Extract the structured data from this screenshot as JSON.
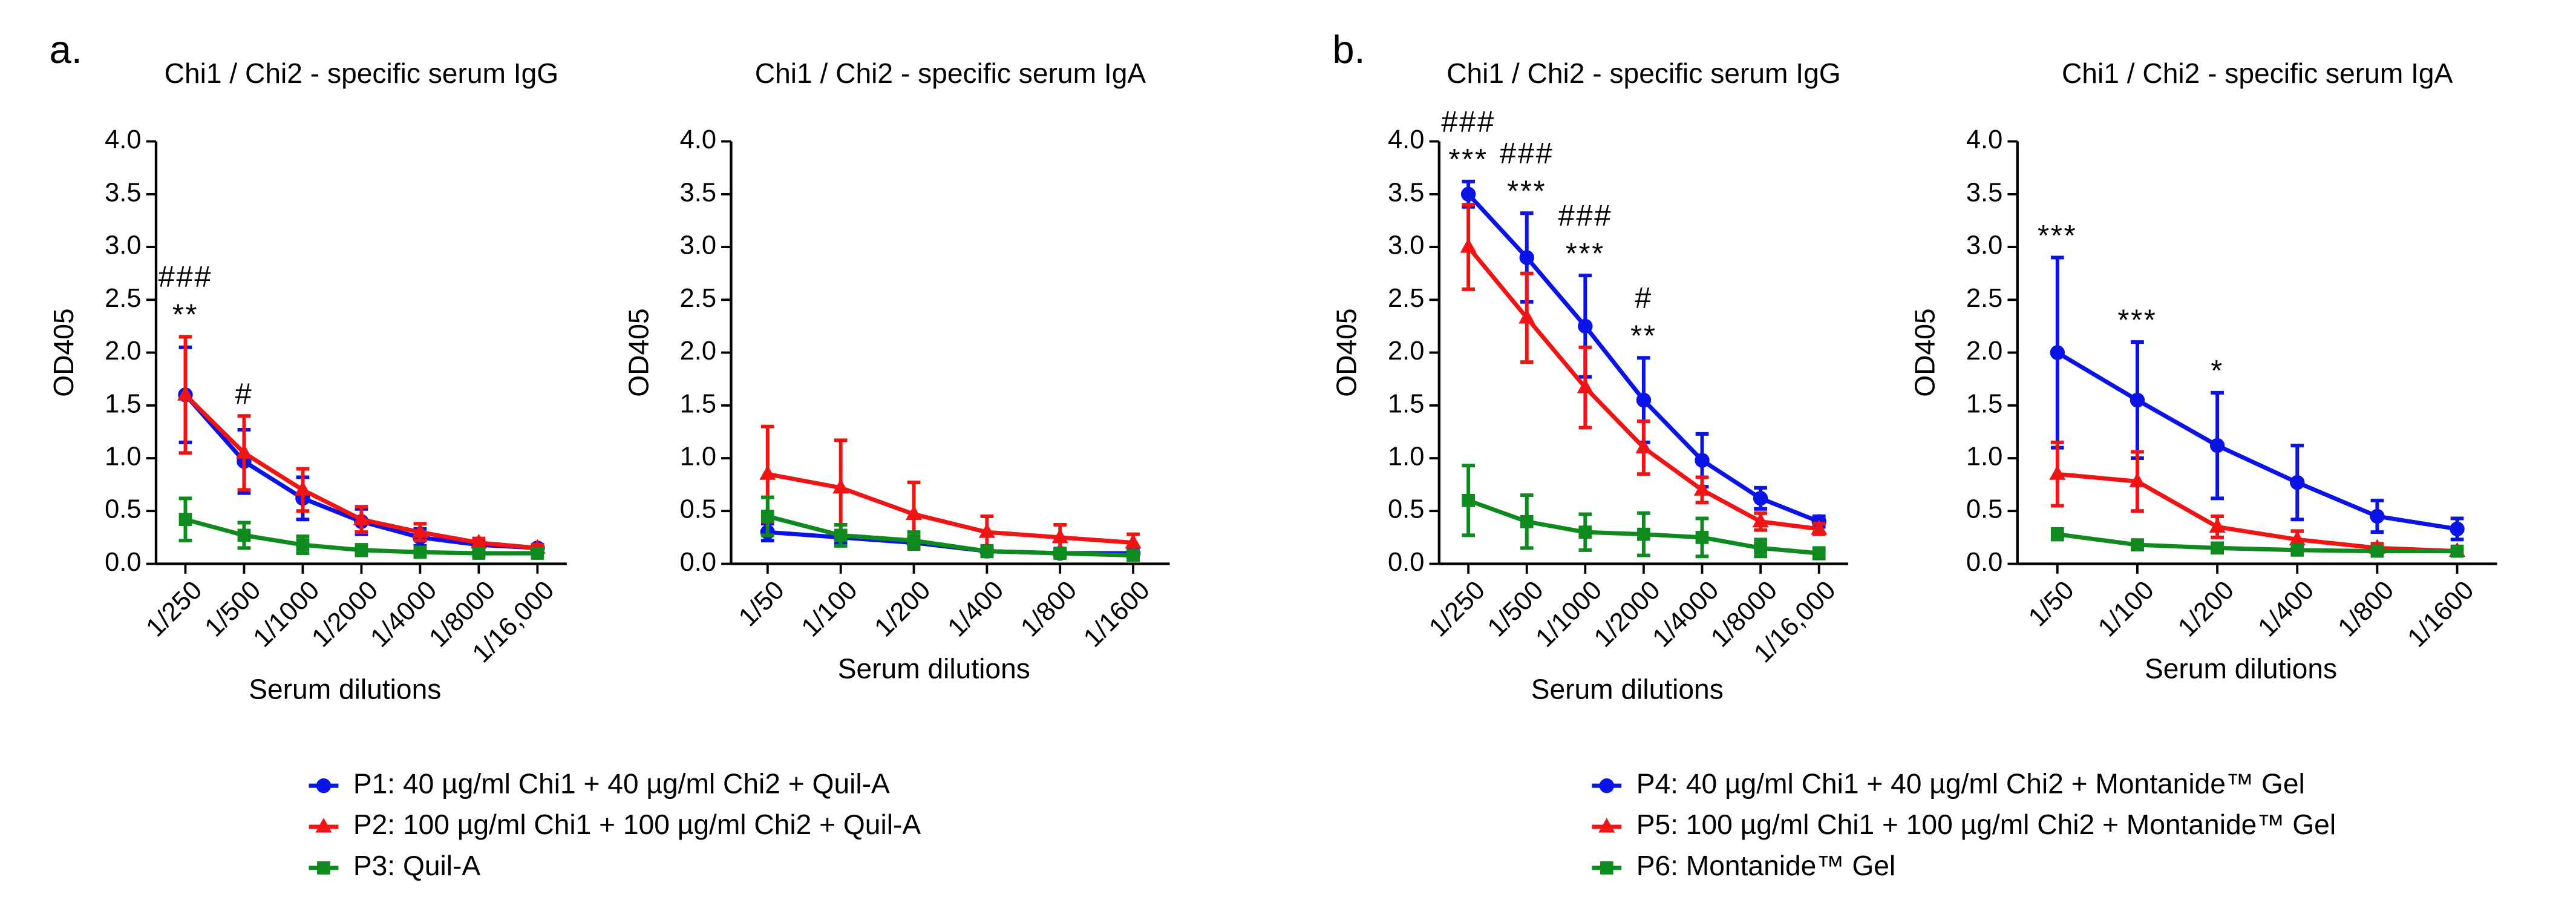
{
  "chart_data": [
    {
      "type": "line",
      "panel": "a.",
      "title": "Chi1 / Chi2 - specific serum IgG",
      "xlabel": "Serum dilutions",
      "ylabel": "OD405",
      "legend": "bottom",
      "categories": [
        "1/250",
        "1/500",
        "1/1000",
        "1/2000",
        "1/4000",
        "1/8000",
        "1/16,000"
      ],
      "ylim": [
        0,
        4
      ],
      "yticks": [
        {
          "value": 0,
          "label": "0.0"
        },
        {
          "value": 0.5,
          "label": "0.5"
        },
        {
          "value": 1,
          "label": "1.0"
        },
        {
          "value": 1.5,
          "label": "1.5"
        },
        {
          "value": 2,
          "label": "2.0"
        },
        {
          "value": 2.5,
          "label": "2.5"
        },
        {
          "value": 3,
          "label": "3.0"
        },
        {
          "value": 3.5,
          "label": "3.5"
        },
        {
          "value": 4,
          "label": "4.0"
        }
      ],
      "series": [
        {
          "name": "P1: 40 µg/ml Chi1 + 40 µg/ml Chi2 + Quil-A",
          "color": "#0a14e6",
          "marker": "circle",
          "values": [
            1.6,
            0.97,
            0.62,
            0.4,
            0.25,
            0.18,
            0.15
          ],
          "errors": [
            0.45,
            0.3,
            0.2,
            0.12,
            0.08,
            0.04,
            0.03
          ]
        },
        {
          "name": "P2: 100 µg/ml Chi1 + 100 µg/ml Chi2 + Quil-A",
          "color": "#f01414",
          "marker": "triangle",
          "values": [
            1.6,
            1.05,
            0.7,
            0.42,
            0.3,
            0.2,
            0.15
          ],
          "errors": [
            0.55,
            0.35,
            0.2,
            0.12,
            0.08,
            0.04,
            0.03
          ]
        },
        {
          "name": "P3: Quil-A",
          "color": "#0f8a1e",
          "marker": "square",
          "values": [
            0.42,
            0.27,
            0.18,
            0.13,
            0.11,
            0.1,
            0.1
          ],
          "errors": [
            0.2,
            0.12,
            0.08,
            0.05,
            0.04,
            0.03,
            0.03
          ]
        }
      ],
      "annotations": [
        {
          "category": "1/250",
          "lines": [
            "###",
            "**"
          ]
        },
        {
          "category": "1/500",
          "lines": [
            "#"
          ]
        }
      ]
    },
    {
      "type": "line",
      "title": "Chi1 / Chi2 - specific serum IgA",
      "xlabel": "Serum dilutions",
      "ylabel": "OD405",
      "categories": [
        "1/50",
        "1/100",
        "1/200",
        "1/400",
        "1/800",
        "1/1600"
      ],
      "ylim": [
        0,
        4
      ],
      "yticks": [
        {
          "value": 0,
          "label": "0.0"
        },
        {
          "value": 0.5,
          "label": "0.5"
        },
        {
          "value": 1,
          "label": "1.0"
        },
        {
          "value": 1.5,
          "label": "1.5"
        },
        {
          "value": 2,
          "label": "2.0"
        },
        {
          "value": 2.5,
          "label": "2.5"
        },
        {
          "value": 3,
          "label": "3.0"
        },
        {
          "value": 3.5,
          "label": "3.5"
        },
        {
          "value": 4,
          "label": "4.0"
        }
      ],
      "series": [
        {
          "name": "P1: 40 µg/ml Chi1 + 40 µg/ml Chi2 + Quil-A",
          "color": "#0a14e6",
          "marker": "circle",
          "values": [
            0.3,
            0.25,
            0.2,
            0.12,
            0.1,
            0.1
          ],
          "errors": [
            0.08,
            0.06,
            0.05,
            0.04,
            0.03,
            0.03
          ]
        },
        {
          "name": "P2: 100 µg/ml Chi1 + 100 µg/ml Chi2 + Quil-A",
          "color": "#f01414",
          "marker": "triangle",
          "values": [
            0.85,
            0.72,
            0.47,
            0.3,
            0.25,
            0.2
          ],
          "errors": [
            0.45,
            0.45,
            0.3,
            0.15,
            0.12,
            0.08
          ]
        },
        {
          "name": "P3: Quil-A",
          "color": "#0f8a1e",
          "marker": "square",
          "values": [
            0.45,
            0.27,
            0.22,
            0.12,
            0.1,
            0.08
          ],
          "errors": [
            0.18,
            0.1,
            0.08,
            0.05,
            0.04,
            0.03
          ]
        }
      ],
      "annotations": []
    },
    {
      "type": "line",
      "panel": "b.",
      "title": "Chi1 / Chi2 - specific serum IgG",
      "xlabel": "Serum dilutions",
      "ylabel": "OD405",
      "legend": "bottom",
      "categories": [
        "1/250",
        "1/500",
        "1/1000",
        "1/2000",
        "1/4000",
        "1/8000",
        "1/16,000"
      ],
      "ylim": [
        0,
        4
      ],
      "yticks": [
        {
          "value": 0,
          "label": "0.0"
        },
        {
          "value": 0.5,
          "label": "0.5"
        },
        {
          "value": 1,
          "label": "1.0"
        },
        {
          "value": 1.5,
          "label": "1.5"
        },
        {
          "value": 2,
          "label": "2.0"
        },
        {
          "value": 2.5,
          "label": "2.5"
        },
        {
          "value": 3,
          "label": "3.0"
        },
        {
          "value": 3.5,
          "label": "3.5"
        },
        {
          "value": 4,
          "label": "4.0"
        }
      ],
      "series": [
        {
          "name": "P4: 40 µg/ml Chi1 + 40 µg/ml Chi2 + Montanide™ Gel",
          "color": "#0a14e6",
          "marker": "circle",
          "values": [
            3.5,
            2.9,
            2.25,
            1.55,
            0.98,
            0.62,
            0.4
          ],
          "errors": [
            0.12,
            0.42,
            0.48,
            0.4,
            0.25,
            0.1,
            0.05
          ]
        },
        {
          "name": "P5: 100 µg/ml Chi1 + 100 µg/ml Chi2 + Montanide™ Gel",
          "color": "#f01414",
          "marker": "triangle",
          "values": [
            3.0,
            2.33,
            1.67,
            1.1,
            0.7,
            0.4,
            0.33
          ],
          "errors": [
            0.4,
            0.42,
            0.38,
            0.25,
            0.12,
            0.08,
            0.05
          ]
        },
        {
          "name": "P6: Montanide™ Gel",
          "color": "#0f8a1e",
          "marker": "square",
          "values": [
            0.6,
            0.4,
            0.3,
            0.28,
            0.25,
            0.15,
            0.1
          ],
          "errors": [
            0.33,
            0.25,
            0.17,
            0.2,
            0.18,
            0.08,
            0.05
          ]
        }
      ],
      "annotations": [
        {
          "category": "1/250",
          "lines": [
            "###",
            "***"
          ]
        },
        {
          "category": "1/500",
          "lines": [
            "###",
            "***"
          ]
        },
        {
          "category": "1/1000",
          "lines": [
            "###",
            "***"
          ]
        },
        {
          "category": "1/2000",
          "lines": [
            "#",
            "**"
          ]
        }
      ]
    },
    {
      "type": "line",
      "title": "Chi1 / Chi2 - specific serum IgA",
      "xlabel": "Serum dilutions",
      "ylabel": "OD405",
      "categories": [
        "1/50",
        "1/100",
        "1/200",
        "1/400",
        "1/800",
        "1/1600"
      ],
      "ylim": [
        0,
        4
      ],
      "yticks": [
        {
          "value": 0,
          "label": "0.0"
        },
        {
          "value": 0.5,
          "label": "0.5"
        },
        {
          "value": 1,
          "label": "1.0"
        },
        {
          "value": 1.5,
          "label": "1.5"
        },
        {
          "value": 2,
          "label": "2.0"
        },
        {
          "value": 2.5,
          "label": "2.5"
        },
        {
          "value": 3,
          "label": "3.0"
        },
        {
          "value": 3.5,
          "label": "3.5"
        },
        {
          "value": 4,
          "label": "4.0"
        }
      ],
      "series": [
        {
          "name": "P4: 40 µg/ml Chi1 + 40 µg/ml Chi2 + Montanide™ Gel",
          "color": "#0a14e6",
          "marker": "circle",
          "values": [
            2.0,
            1.55,
            1.12,
            0.77,
            0.45,
            0.33
          ],
          "errors": [
            0.9,
            0.55,
            0.5,
            0.35,
            0.15,
            0.1
          ]
        },
        {
          "name": "P5: 100 µg/ml Chi1 + 100 µg/ml Chi2 + Montanide™ Gel",
          "color": "#f01414",
          "marker": "triangle",
          "values": [
            0.85,
            0.78,
            0.35,
            0.23,
            0.15,
            0.12
          ],
          "errors": [
            0.3,
            0.28,
            0.1,
            0.08,
            0.04,
            0.03
          ]
        },
        {
          "name": "P6: Montanide™ Gel",
          "color": "#0f8a1e",
          "marker": "square",
          "values": [
            0.28,
            0.18,
            0.15,
            0.13,
            0.12,
            0.12
          ],
          "errors": [
            0.05,
            0.04,
            0.03,
            0.03,
            0.02,
            0.02
          ]
        }
      ],
      "annotations": [
        {
          "category": "1/50",
          "lines": [
            "***"
          ]
        },
        {
          "category": "1/100",
          "lines": [
            "***"
          ]
        },
        {
          "category": "1/200",
          "lines": [
            "*"
          ]
        }
      ]
    }
  ]
}
